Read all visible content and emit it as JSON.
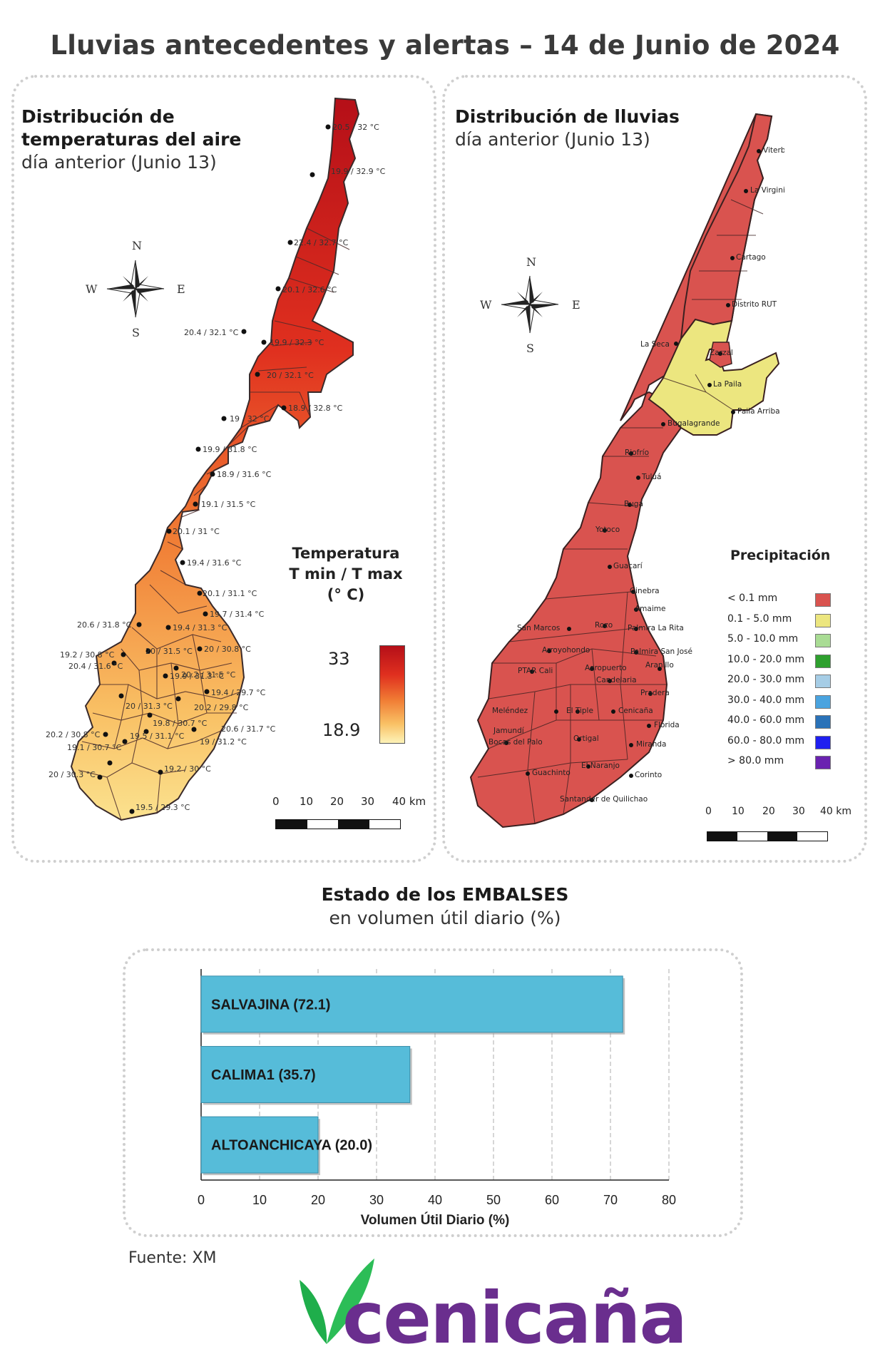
{
  "title": "Lluvias antecedentes y alertas – 14 de Junio de 2024",
  "temp_panel": {
    "title_line1": "Distribución de",
    "title_line2": "temperaturas del aire",
    "subtitle": "día anterior (Junio 13)",
    "legend_title_1": "Temperatura",
    "legend_title_2": "T min / T max",
    "legend_title_3": "(° C)",
    "legend_max": "33",
    "legend_min": "18.9",
    "colors": [
      "#c8141c",
      "#e84a22",
      "#f5a045",
      "#fbe89a"
    ],
    "compass": {
      "n": "N",
      "s": "S",
      "e": "E",
      "w": "W"
    },
    "scale": [
      "0",
      "10",
      "20",
      "30",
      "40 km"
    ],
    "stations": [
      "20.5 / 32 °C",
      "19.9 / 32.9 °C",
      "22.4 / 32.7 °C",
      "20.1 / 32.6 °C",
      "20.4 / 32.1 °C",
      "19.9 / 32.3 °C",
      "20 / 32.1 °C",
      "18.9 / 32.8 °C",
      "19 / 32 °C",
      "19.9 / 31.8 °C",
      "18.9 / 31.6 °C",
      "19.1 / 31.5 °C",
      "20.1 / 31 °C",
      "19.4 / 31.6 °C",
      "20.1 / 31.1 °C",
      "19.7 / 31.4 °C",
      "20.6 / 31.8 °C",
      "19.4 / 31.3 °C",
      "20 / 31.5 °C",
      "19.2 / 30.8 °C",
      "20 / 30.8 °C",
      "20.4 / 31.6 °C",
      "19.9 / 31.3 °C",
      "20.2 / 31.5 °C",
      "19.4 / 29.7 °C",
      "20 / 31.3 °C",
      "20.2 / 29.8 °C",
      "19.8 / 30.7 °C",
      "20.6 / 31.7 °C",
      "20.2 / 30.8 °C",
      "19.5 / 31.1 °C",
      "19 / 31.2 °C",
      "19.1 / 30.7 °C",
      "19.2 / 30 °C",
      "20 / 30.3 °C",
      "19.5 / 29.3 °C"
    ]
  },
  "rain_panel": {
    "title": "Distribución de lluvias",
    "subtitle": "día anterior (Junio 13)",
    "compass": {
      "n": "N",
      "s": "S",
      "e": "E",
      "w": "W"
    },
    "legend_title": "Precipitación",
    "legend": [
      {
        "label": "< 0.1 mm",
        "color": "#d9534f"
      },
      {
        "label": "0.1 - 5.0 mm",
        "color": "#ece67f"
      },
      {
        "label": "5.0 - 10.0 mm",
        "color": "#a9dc94"
      },
      {
        "label": "10.0 - 20.0 mm",
        "color": "#2ea02e"
      },
      {
        "label": "20.0 - 30.0 mm",
        "color": "#a6cde6"
      },
      {
        "label": "30.0 - 40.0 mm",
        "color": "#4aa3df"
      },
      {
        "label": "40.0 - 60.0 mm",
        "color": "#2a72b8"
      },
      {
        "label": "60.0 - 80.0 mm",
        "color": "#1f1ff0"
      },
      {
        "label": "> 80.0 mm",
        "color": "#6a22b0"
      }
    ],
    "scale": [
      "0",
      "10",
      "20",
      "30",
      "40 km"
    ],
    "places": [
      "Viterbo",
      "La Virginia",
      "Cartago",
      "Distrito RUT",
      "La Seca",
      "Zarzal",
      "La Paila",
      "Paila Arriba",
      "Bugalagrande",
      "Riofrío",
      "Tuluá",
      "Buga",
      "Yotoco",
      "Guacarí",
      "Ginebra",
      "Amaime",
      "San Marcos",
      "Rozo",
      "Palmira La Rita",
      "Arroyohondo",
      "Palmira San José",
      "Aeropuerto",
      "Aranillo",
      "PTAR Cali",
      "Candelaria",
      "Pradera",
      "Meléndez",
      "El Tiple",
      "Cenicaña",
      "Florida",
      "Jamundí",
      "Bocas del Palo",
      "Ortigal",
      "Miranda",
      "El Naranjo",
      "Guachinto",
      "Corinto",
      "Santander de Quilichao"
    ]
  },
  "reservoirs": {
    "title": "Estado de los EMBALSES",
    "subtitle": "en volumen útil diario (%)"
  },
  "chart_data": {
    "type": "bar",
    "orientation": "horizontal",
    "categories": [
      "SALVAJINA",
      "CALIMA1",
      "ALTOANCHICAYA"
    ],
    "bar_labels": [
      "SALVAJINA (72.1)",
      "CALIMA1 (35.7)",
      "ALTOANCHICAYA (20.0)"
    ],
    "values": [
      72.1,
      35.7,
      20.0
    ],
    "xlabel": "Volumen Útil Diario (%)",
    "xlim": [
      0,
      80
    ],
    "xticks": [
      "0",
      "10",
      "20",
      "30",
      "40",
      "50",
      "60",
      "70",
      "80"
    ],
    "grid": true,
    "bar_color": "#56bcd9"
  },
  "source": "Fuente: XM",
  "logo": {
    "text": "cenicaña",
    "colors": [
      "#1fae4b",
      "#6a2e8e"
    ]
  }
}
